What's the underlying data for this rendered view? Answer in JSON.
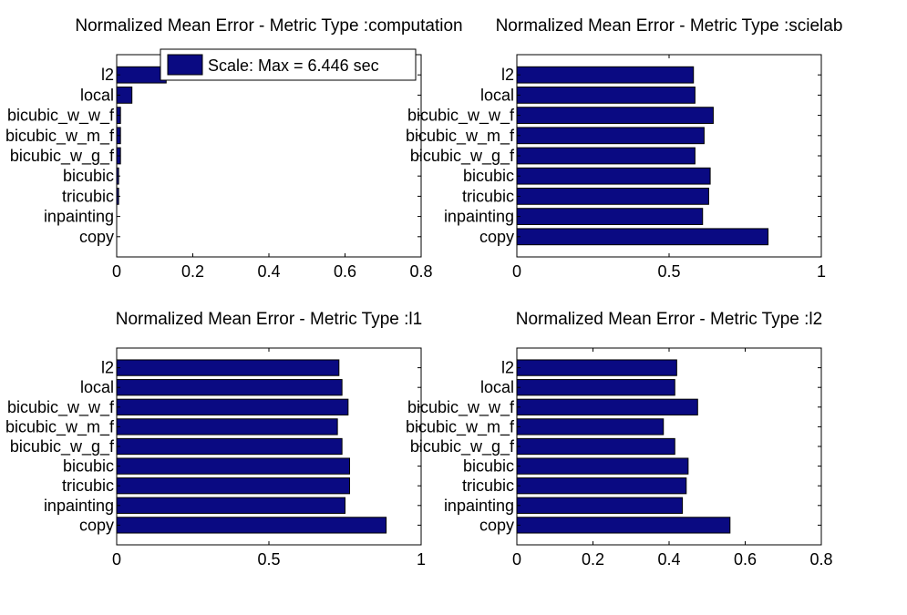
{
  "figure": {
    "background": "#ffffff",
    "bar_color": "#0a0a82",
    "axis_color": "#000000"
  },
  "chart_data": [
    {
      "type": "bar",
      "orientation": "horizontal",
      "title": "Normalized Mean Error - Metric Type :computation",
      "categories": [
        "l2",
        "local",
        "bicubic_w_w_f",
        "bicubic_w_m_f",
        "bicubic_w_g_f",
        "bicubic",
        "tricubic",
        "inpainting",
        "copy"
      ],
      "values": [
        0.13,
        0.04,
        0.01,
        0.01,
        0.01,
        0.005,
        0.005,
        0.0,
        0.0
      ],
      "xlim": [
        0,
        0.8
      ],
      "xticks": [
        "0",
        "0.2",
        "0.4",
        "0.6",
        "0.8"
      ],
      "legend": {
        "label": "Scale: Max = 6.446 sec",
        "placement": "top-right"
      },
      "grid": false
    },
    {
      "type": "bar",
      "orientation": "horizontal",
      "title": "Normalized Mean Error - Metric Type :scielab",
      "categories": [
        "l2",
        "local",
        "bicubic_w_w_f",
        "bicubic_w_m_f",
        "bicubic_w_g_f",
        "bicubic",
        "tricubic",
        "inpainting",
        "copy"
      ],
      "values": [
        0.58,
        0.585,
        0.645,
        0.615,
        0.585,
        0.635,
        0.63,
        0.61,
        0.825
      ],
      "xlim": [
        0,
        1
      ],
      "xticks": [
        "0",
        "0.5",
        "1"
      ],
      "grid": false
    },
    {
      "type": "bar",
      "orientation": "horizontal",
      "title": "Normalized Mean Error - Metric Type :l1",
      "categories": [
        "l2",
        "local",
        "bicubic_w_w_f",
        "bicubic_w_m_f",
        "bicubic_w_g_f",
        "bicubic",
        "tricubic",
        "inpainting",
        "copy"
      ],
      "values": [
        0.73,
        0.74,
        0.76,
        0.725,
        0.74,
        0.765,
        0.765,
        0.75,
        0.885
      ],
      "xlim": [
        0,
        1
      ],
      "xticks": [
        "0",
        "0.5",
        "1"
      ],
      "grid": false
    },
    {
      "type": "bar",
      "orientation": "horizontal",
      "title": "Normalized Mean Error - Metric Type :l2",
      "categories": [
        "l2",
        "local",
        "bicubic_w_w_f",
        "bicubic_w_m_f",
        "bicubic_w_g_f",
        "bicubic",
        "tricubic",
        "inpainting",
        "copy"
      ],
      "values": [
        0.42,
        0.415,
        0.475,
        0.385,
        0.415,
        0.45,
        0.445,
        0.435,
        0.56
      ],
      "xlim": [
        0,
        0.8
      ],
      "xticks": [
        "0",
        "0.2",
        "0.4",
        "0.6",
        "0.8"
      ],
      "grid": false
    }
  ]
}
